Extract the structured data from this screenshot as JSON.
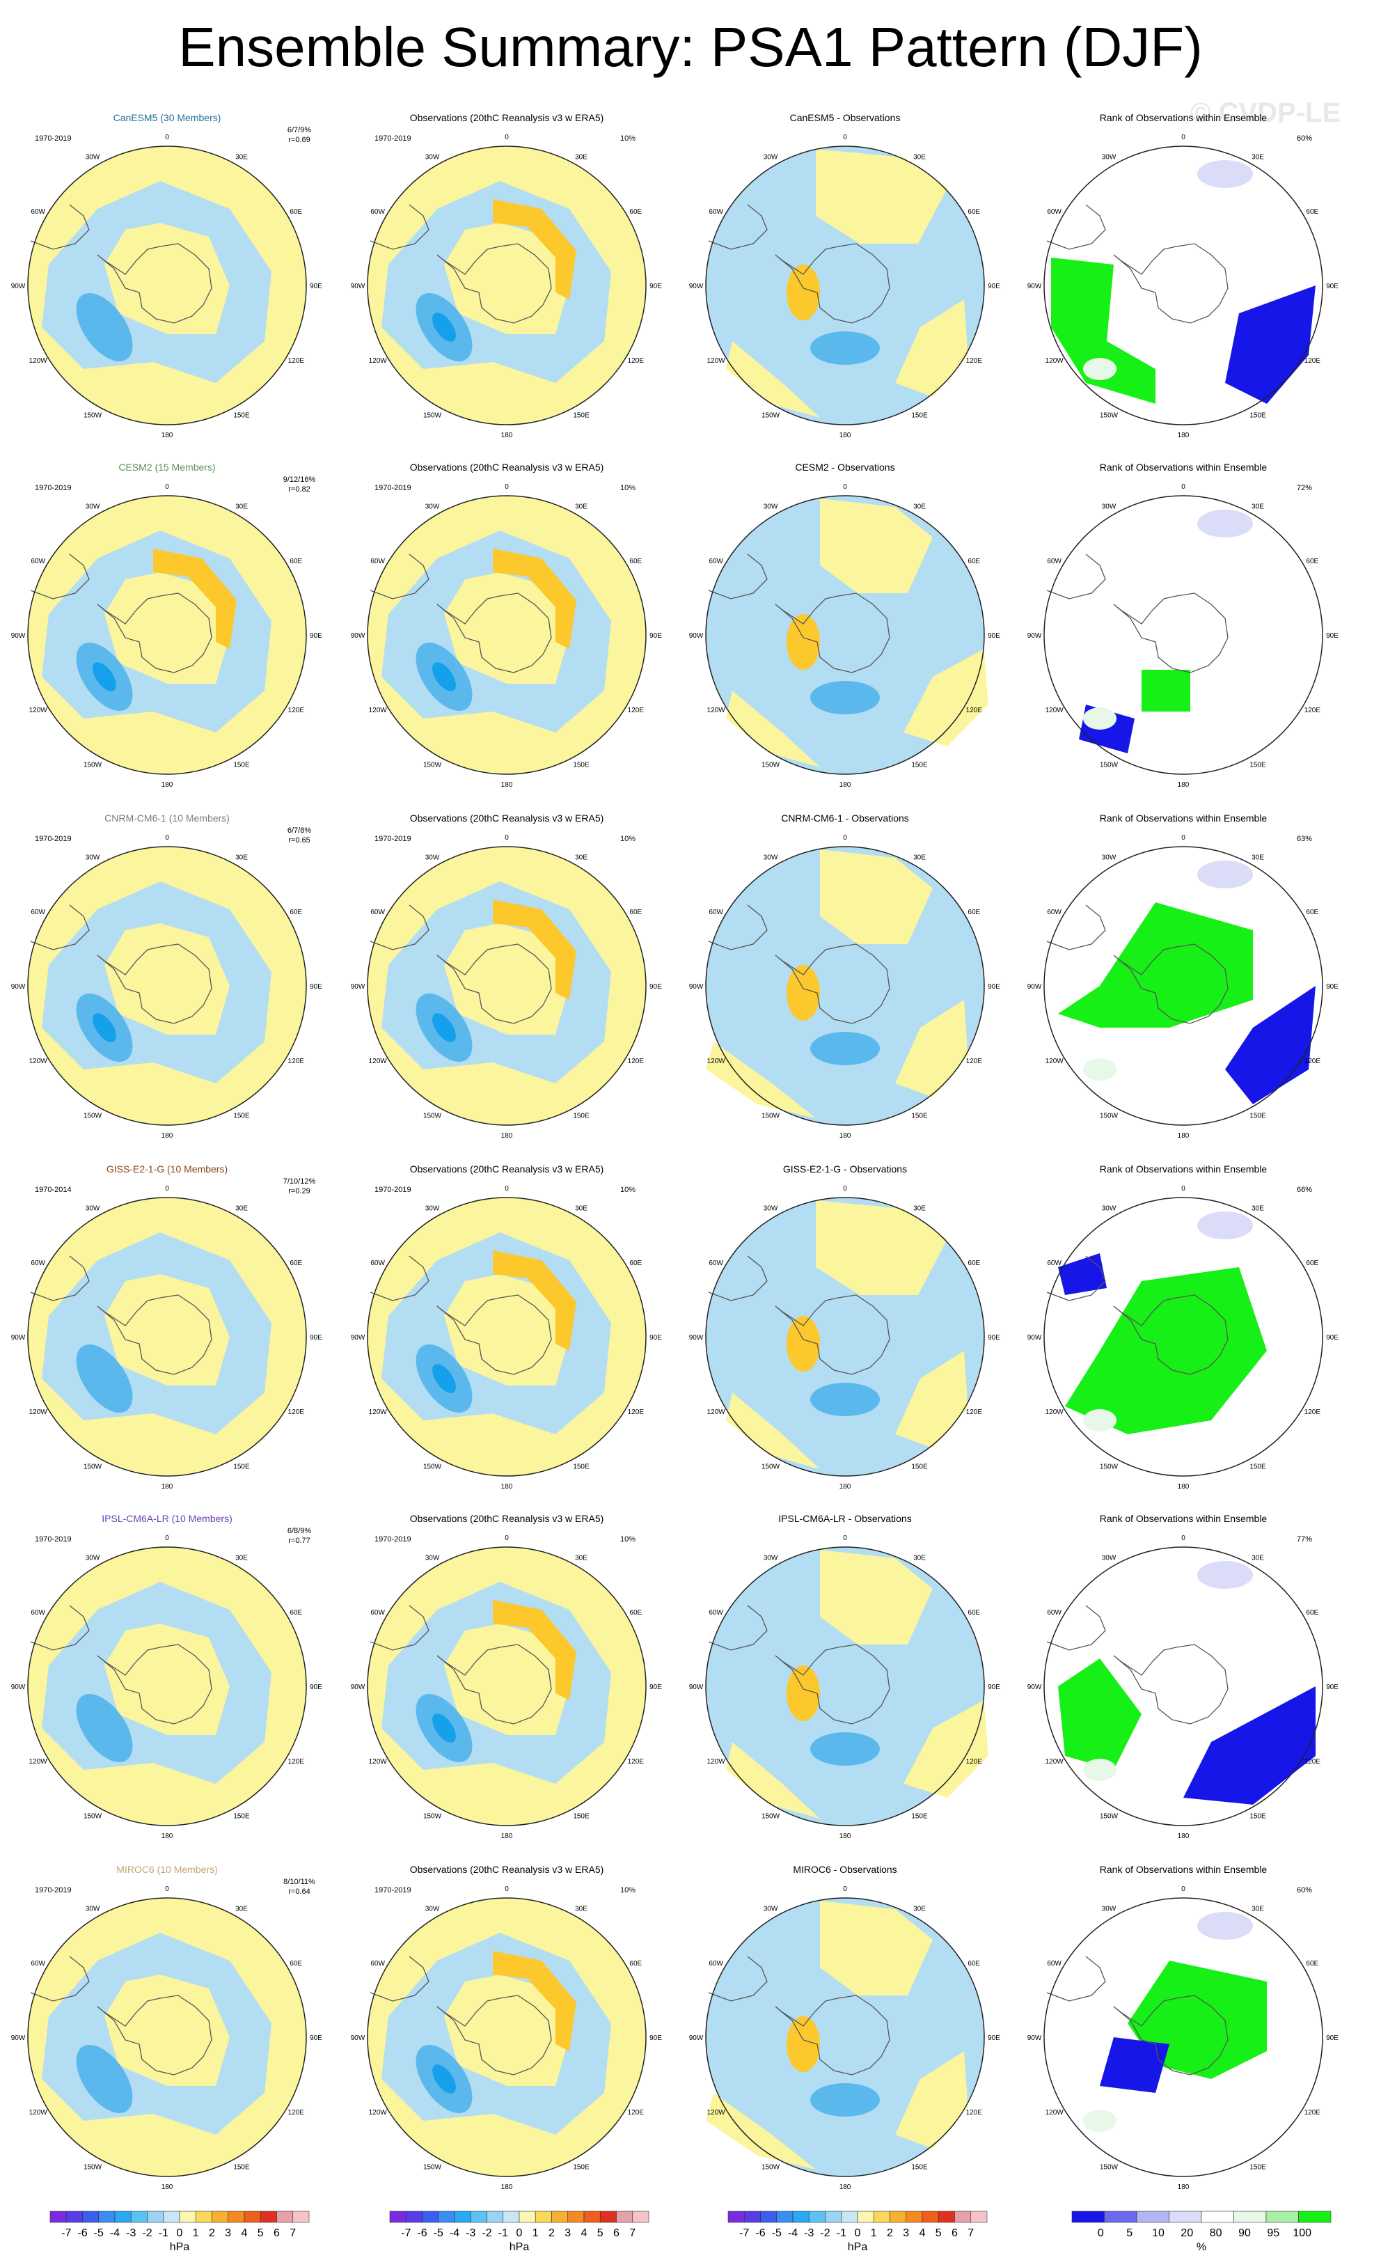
{
  "title": "Ensemble Summary: PSA1 Pattern (DJF)",
  "watermark": "© CVDP-LE",
  "lon_labels": [
    "0",
    "30E",
    "60E",
    "90E",
    "120E",
    "150E",
    "180",
    "150W",
    "120W",
    "90W",
    "60W",
    "30W"
  ],
  "colors": {
    "yellow": "#fbf59d",
    "lightblue": "#b3ddf2",
    "midblue": "#5bb8ec",
    "deepblue": "#14a0eb",
    "orange": "#fcc82c",
    "green": "#16f016",
    "rank_blue": "#1616e8",
    "rank_lightblue": "#dadcf8",
    "rank_palegreen": "#e8f8e8"
  },
  "rows": [
    {
      "model": "CanESM5 (30 Members)",
      "model_color": "#1e6e9e",
      "period_model": "1970-2019",
      "stats": "6/7/9%",
      "r": "r=0.69",
      "obs_pct": "10%",
      "diff_title": "CanESM5 - Observations",
      "rank_pct": "60%"
    },
    {
      "model": "CESM2 (15 Members)",
      "model_color": "#5e8f5e",
      "period_model": "1970-2019",
      "stats": "9/12/16%",
      "r": "r=0.82",
      "obs_pct": "10%",
      "diff_title": "CESM2 - Observations",
      "rank_pct": "72%"
    },
    {
      "model": "CNRM-CM6-1 (10 Members)",
      "model_color": "#7a7a7a",
      "period_model": "1970-2019",
      "stats": "6/7/8%",
      "r": "r=0.65",
      "obs_pct": "10%",
      "diff_title": "CNRM-CM6-1 - Observations",
      "rank_pct": "63%"
    },
    {
      "model": "GISS-E2-1-G (10 Members)",
      "model_color": "#8b4513",
      "period_model": "1970-2014",
      "stats": "7/10/12%",
      "r": "r=0.29",
      "obs_pct": "10%",
      "diff_title": "GISS-E2-1-G - Observations",
      "rank_pct": "66%"
    },
    {
      "model": "IPSL-CM6A-LR (10 Members)",
      "model_color": "#6a3fb5",
      "period_model": "1970-2019",
      "stats": "6/8/9%",
      "r": "r=0.77",
      "obs_pct": "10%",
      "diff_title": "IPSL-CM6A-LR - Observations",
      "rank_pct": "77%"
    },
    {
      "model": "MIROC6 (10 Members)",
      "model_color": "#c8a26e",
      "period_model": "1970-2019",
      "stats": "8/10/11%",
      "r": "r=0.64",
      "obs_pct": "10%",
      "diff_title": "MIROC6 - Observations",
      "rank_pct": "60%"
    }
  ],
  "obs_title": "Observations (20thC Reanalysis v3 w ERA5)",
  "obs_period": "1970-2019",
  "rank_title": "Rank of Observations within Ensemble",
  "hpa_colorbar": {
    "labels": [
      "-7",
      "-6",
      "-5",
      "-4",
      "-3",
      "-2",
      "-1",
      "0",
      "1",
      "2",
      "3",
      "4",
      "5",
      "6",
      "7"
    ],
    "colors": [
      "#7a2be0",
      "#5a3be8",
      "#3a5ef0",
      "#3a8ef2",
      "#2aa8f0",
      "#5bc3f2",
      "#9ad4f4",
      "#c9e6f6",
      "#fdf6b0",
      "#fbd75a",
      "#f8b030",
      "#f48a22",
      "#ee5e1c",
      "#e03020",
      "#e8a0a8",
      "#f6c4c8"
    ],
    "unit": "hPa"
  },
  "rank_colorbar": {
    "labels": [
      "0",
      "5",
      "10",
      "20",
      "80",
      "90",
      "95",
      "100"
    ],
    "colors": [
      "#1616e8",
      "#6a6aee",
      "#b4b4f4",
      "#dadcf8",
      "#ffffff",
      "#e8f8e8",
      "#a8f0a8",
      "#16f016"
    ],
    "unit": "%"
  }
}
